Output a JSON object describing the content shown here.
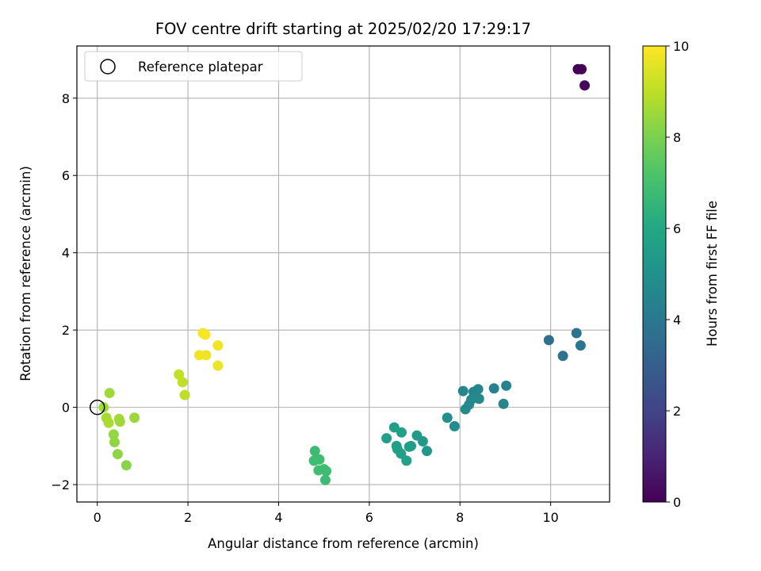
{
  "chart_data": {
    "type": "scatter",
    "title": "FOV centre drift starting at 2025/02/20 17:29:17",
    "xlabel": "Angular distance from reference (arcmin)",
    "ylabel": "Rotation from reference (arcmin)",
    "xlim": [
      -0.45,
      11.3
    ],
    "ylim": [
      -2.45,
      9.35
    ],
    "xticks": [
      0,
      2,
      4,
      6,
      8,
      10
    ],
    "yticks": [
      -2,
      0,
      2,
      4,
      6,
      8
    ],
    "xtick_labels": [
      "0",
      "2",
      "4",
      "6",
      "8",
      "10"
    ],
    "ytick_labels": [
      "−2",
      "0",
      "2",
      "4",
      "6",
      "8"
    ],
    "grid": true,
    "colormap": "viridis",
    "colorbar": {
      "label": "Hours from first FF file",
      "range": [
        0,
        10
      ],
      "ticks": [
        0,
        2,
        4,
        6,
        8,
        10
      ],
      "tick_labels": [
        "0",
        "2",
        "4",
        "6",
        "8",
        "10"
      ]
    },
    "legend": {
      "position": "upper-left",
      "entries": [
        {
          "label": "Reference platepar",
          "marker": "open-circle",
          "color": "#000000"
        }
      ]
    },
    "reference_point": {
      "x": 0,
      "y": 0
    },
    "points": [
      {
        "x": 10.6,
        "y": 8.75,
        "c": 0.0
      },
      {
        "x": 10.68,
        "y": 8.75,
        "c": 0.1
      },
      {
        "x": 10.75,
        "y": 8.33,
        "c": 0.2
      },
      {
        "x": 9.96,
        "y": 1.74,
        "c": 3.65
      },
      {
        "x": 10.27,
        "y": 1.33,
        "c": 3.75
      },
      {
        "x": 10.57,
        "y": 1.92,
        "c": 3.85
      },
      {
        "x": 10.66,
        "y": 1.6,
        "c": 3.9
      },
      {
        "x": 8.07,
        "y": 0.42,
        "c": 4.5
      },
      {
        "x": 8.3,
        "y": 0.4,
        "c": 4.55
      },
      {
        "x": 8.4,
        "y": 0.47,
        "c": 4.6
      },
      {
        "x": 8.25,
        "y": 0.2,
        "c": 4.62
      },
      {
        "x": 8.42,
        "y": 0.22,
        "c": 4.65
      },
      {
        "x": 8.75,
        "y": 0.49,
        "c": 4.45
      },
      {
        "x": 9.02,
        "y": 0.56,
        "c": 4.4
      },
      {
        "x": 8.96,
        "y": 0.09,
        "c": 4.5
      },
      {
        "x": 8.12,
        "y": -0.05,
        "c": 4.75
      },
      {
        "x": 8.2,
        "y": 0.07,
        "c": 4.7
      },
      {
        "x": 7.72,
        "y": -0.27,
        "c": 4.9
      },
      {
        "x": 7.88,
        "y": -0.49,
        "c": 4.85
      },
      {
        "x": 6.38,
        "y": -0.8,
        "c": 5.6
      },
      {
        "x": 6.55,
        "y": -0.52,
        "c": 5.65
      },
      {
        "x": 6.71,
        "y": -0.65,
        "c": 5.6
      },
      {
        "x": 6.6,
        "y": -1.0,
        "c": 5.55
      },
      {
        "x": 6.62,
        "y": -1.08,
        "c": 5.6
      },
      {
        "x": 6.7,
        "y": -1.2,
        "c": 5.65
      },
      {
        "x": 6.82,
        "y": -1.38,
        "c": 5.7
      },
      {
        "x": 6.88,
        "y": -1.02,
        "c": 5.5
      },
      {
        "x": 6.92,
        "y": -1.0,
        "c": 5.55
      },
      {
        "x": 7.05,
        "y": -0.73,
        "c": 5.4
      },
      {
        "x": 7.18,
        "y": -0.88,
        "c": 5.35
      },
      {
        "x": 7.27,
        "y": -1.13,
        "c": 5.3
      },
      {
        "x": 4.8,
        "y": -1.13,
        "c": 6.8
      },
      {
        "x": 4.78,
        "y": -1.38,
        "c": 6.85
      },
      {
        "x": 4.9,
        "y": -1.35,
        "c": 6.9
      },
      {
        "x": 4.88,
        "y": -1.63,
        "c": 6.95
      },
      {
        "x": 5.0,
        "y": -1.6,
        "c": 6.9
      },
      {
        "x": 5.05,
        "y": -1.65,
        "c": 6.85
      },
      {
        "x": 5.03,
        "y": -1.88,
        "c": 6.8
      },
      {
        "x": 0.14,
        "y": 0.0,
        "c": 8.6
      },
      {
        "x": 0.27,
        "y": 0.37,
        "c": 8.55
      },
      {
        "x": 0.2,
        "y": -0.27,
        "c": 8.65
      },
      {
        "x": 0.25,
        "y": -0.4,
        "c": 8.7
      },
      {
        "x": 0.48,
        "y": -0.3,
        "c": 8.6
      },
      {
        "x": 0.5,
        "y": -0.37,
        "c": 8.55
      },
      {
        "x": 0.82,
        "y": -0.27,
        "c": 8.5
      },
      {
        "x": 0.36,
        "y": -0.7,
        "c": 8.4
      },
      {
        "x": 0.38,
        "y": -0.9,
        "c": 8.35
      },
      {
        "x": 0.45,
        "y": -1.21,
        "c": 8.3
      },
      {
        "x": 0.64,
        "y": -1.5,
        "c": 8.2
      },
      {
        "x": 1.8,
        "y": 0.85,
        "c": 9.1
      },
      {
        "x": 1.88,
        "y": 0.65,
        "c": 9.05
      },
      {
        "x": 1.93,
        "y": 0.32,
        "c": 9.0
      },
      {
        "x": 2.33,
        "y": 1.92,
        "c": 9.85
      },
      {
        "x": 2.38,
        "y": 1.88,
        "c": 9.9
      },
      {
        "x": 2.25,
        "y": 1.35,
        "c": 9.8
      },
      {
        "x": 2.4,
        "y": 1.35,
        "c": 9.75
      },
      {
        "x": 2.66,
        "y": 1.6,
        "c": 9.8
      },
      {
        "x": 2.66,
        "y": 1.08,
        "c": 9.7
      }
    ]
  }
}
